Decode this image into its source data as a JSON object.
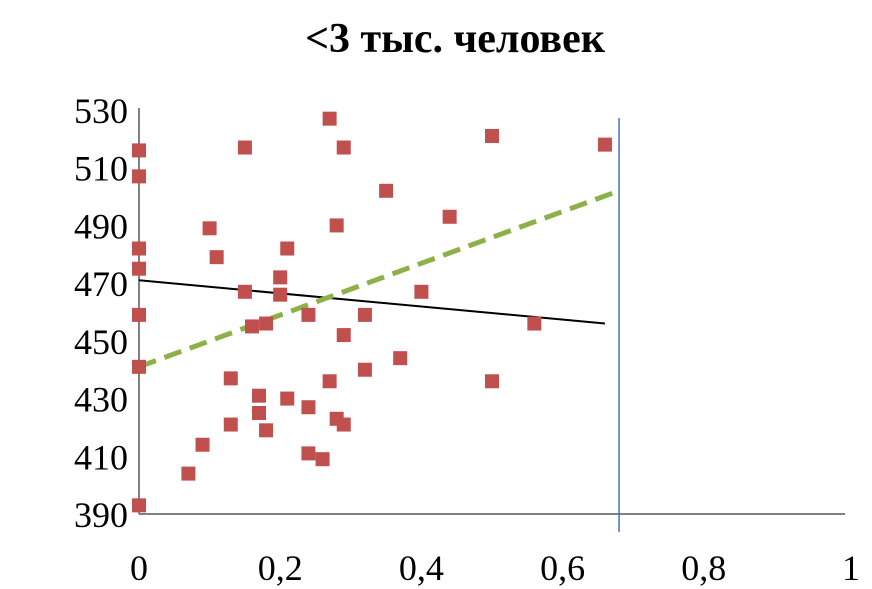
{
  "chart_data": {
    "type": "scatter",
    "title": "<3 тыс. человек",
    "xlabel": "",
    "ylabel": "",
    "xlim": [
      0,
      1
    ],
    "ylim": [
      390,
      530
    ],
    "x_ticks": [
      "0",
      "0,2",
      "0,4",
      "0,6",
      "0,8",
      "1"
    ],
    "y_ticks": [
      "530",
      "510",
      "490",
      "470",
      "450",
      "430",
      "410",
      "390"
    ],
    "grid": false,
    "legend": "none",
    "colors": {
      "points": "#c0504d",
      "trend_black": "#000000",
      "trend_green": "#8db04a",
      "vertical_line": "#4472c4",
      "axis": "#808080"
    },
    "points": [
      {
        "x": 0.0,
        "y": 516
      },
      {
        "x": 0.0,
        "y": 507
      },
      {
        "x": 0.0,
        "y": 482
      },
      {
        "x": 0.0,
        "y": 475
      },
      {
        "x": 0.0,
        "y": 459
      },
      {
        "x": 0.0,
        "y": 441
      },
      {
        "x": 0.0,
        "y": 393
      },
      {
        "x": 0.07,
        "y": 404
      },
      {
        "x": 0.09,
        "y": 414
      },
      {
        "x": 0.1,
        "y": 489
      },
      {
        "x": 0.11,
        "y": 479
      },
      {
        "x": 0.13,
        "y": 437
      },
      {
        "x": 0.13,
        "y": 421
      },
      {
        "x": 0.15,
        "y": 517
      },
      {
        "x": 0.15,
        "y": 467
      },
      {
        "x": 0.16,
        "y": 455
      },
      {
        "x": 0.17,
        "y": 431
      },
      {
        "x": 0.17,
        "y": 425
      },
      {
        "x": 0.18,
        "y": 456
      },
      {
        "x": 0.18,
        "y": 419
      },
      {
        "x": 0.2,
        "y": 472
      },
      {
        "x": 0.2,
        "y": 466
      },
      {
        "x": 0.21,
        "y": 482
      },
      {
        "x": 0.21,
        "y": 430
      },
      {
        "x": 0.24,
        "y": 459
      },
      {
        "x": 0.24,
        "y": 427
      },
      {
        "x": 0.24,
        "y": 411
      },
      {
        "x": 0.26,
        "y": 409
      },
      {
        "x": 0.27,
        "y": 527
      },
      {
        "x": 0.27,
        "y": 436
      },
      {
        "x": 0.28,
        "y": 490
      },
      {
        "x": 0.28,
        "y": 423
      },
      {
        "x": 0.29,
        "y": 517
      },
      {
        "x": 0.29,
        "y": 452
      },
      {
        "x": 0.29,
        "y": 421
      },
      {
        "x": 0.32,
        "y": 459
      },
      {
        "x": 0.32,
        "y": 440
      },
      {
        "x": 0.35,
        "y": 502
      },
      {
        "x": 0.37,
        "y": 444
      },
      {
        "x": 0.4,
        "y": 467
      },
      {
        "x": 0.44,
        "y": 493
      },
      {
        "x": 0.5,
        "y": 521
      },
      {
        "x": 0.5,
        "y": 436
      },
      {
        "x": 0.56,
        "y": 456
      },
      {
        "x": 0.66,
        "y": 518
      }
    ],
    "trend_lines": [
      {
        "style": "solid",
        "x": [
          0.0,
          0.66
        ],
        "y": [
          471,
          456
        ]
      },
      {
        "style": "dashed",
        "x": [
          0.0,
          0.68
        ],
        "y": [
          441,
          502
        ]
      }
    ],
    "vertical_marker_x": 0.68
  }
}
